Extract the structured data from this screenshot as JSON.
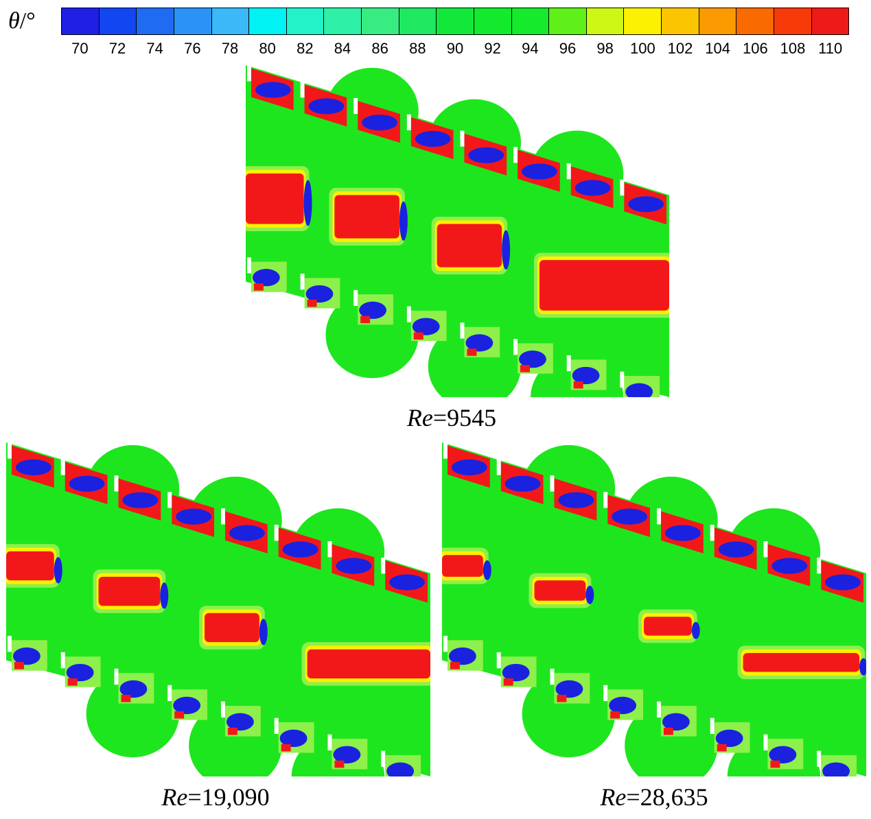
{
  "legend": {
    "symbol": "θ",
    "unit": "/°",
    "ticks": [
      "70",
      "72",
      "74",
      "76",
      "78",
      "80",
      "82",
      "84",
      "86",
      "88",
      "90",
      "92",
      "94",
      "96",
      "98",
      "100",
      "102",
      "104",
      "106",
      "108",
      "110"
    ],
    "colors": [
      "#1f1fe6",
      "#1246f0",
      "#1f6cf2",
      "#2a93f5",
      "#3bb8f8",
      "#00f2f2",
      "#23f2c8",
      "#2ef0a6",
      "#38ec82",
      "#20e860",
      "#12e83a",
      "#13ea2e",
      "#16ea2c",
      "#5ef018",
      "#cdf714",
      "#fbf100",
      "#fac500",
      "#fa9a00",
      "#f96a00",
      "#f83a08",
      "#ee1a1a"
    ]
  },
  "panels": [
    {
      "name": "re-9545",
      "caption_var": "Re",
      "caption_value": "=9545"
    },
    {
      "name": "re-19090",
      "caption_var": "Re",
      "caption_value": "=19,090"
    },
    {
      "name": "re-28635",
      "caption_var": "Re",
      "caption_value": "=28,635"
    }
  ],
  "colors": {
    "background": "#ffffff",
    "bulk": "#1ee61e",
    "hot": "#f2181a",
    "cold": "#1a22e0",
    "warm": "#fbf100",
    "orange": "#fa8c00",
    "light_green": "#8ef04a"
  }
}
